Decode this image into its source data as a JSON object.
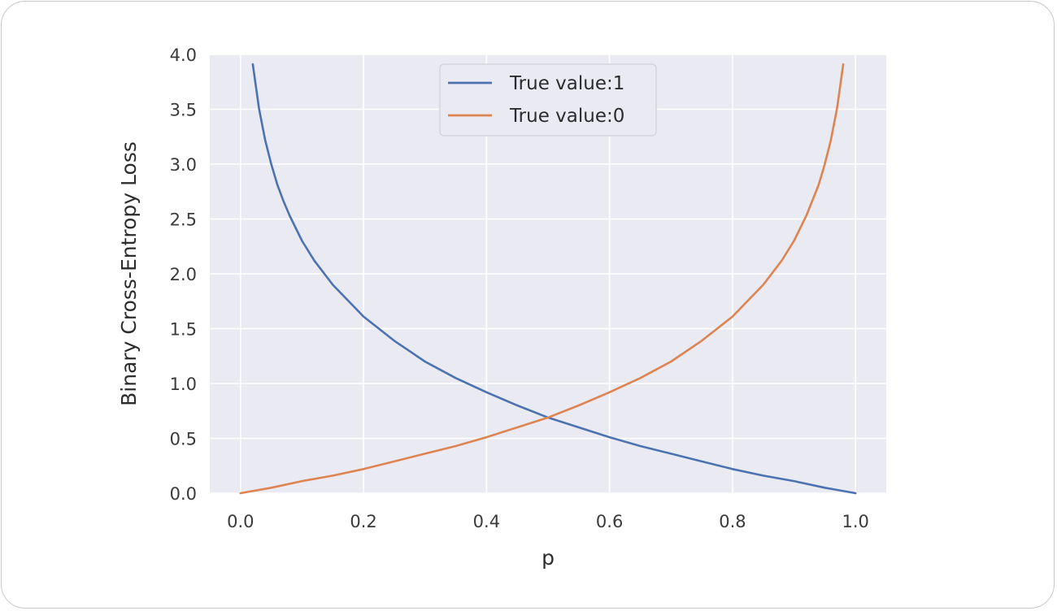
{
  "chart_data": {
    "type": "line",
    "title": "",
    "xlabel": "p",
    "ylabel": "Binary Cross-Entropy Loss",
    "xlim": [
      -0.05,
      1.05
    ],
    "ylim": [
      0.0,
      4.0
    ],
    "x_ticks": [
      "0.0",
      "0.2",
      "0.4",
      "0.6",
      "0.8",
      "1.0"
    ],
    "y_ticks": [
      "0.0",
      "0.5",
      "1.0",
      "1.5",
      "2.0",
      "2.5",
      "3.0",
      "3.5",
      "4.0"
    ],
    "grid": true,
    "legend_position": "top-center",
    "background_color": "#eaeaf2",
    "grid_color": "#ffffff",
    "series": [
      {
        "name": "True value:1",
        "color": "#4c72b0",
        "x": [
          0.02,
          0.03,
          0.04,
          0.05,
          0.06,
          0.07,
          0.08,
          0.1,
          0.12,
          0.15,
          0.2,
          0.25,
          0.3,
          0.35,
          0.4,
          0.45,
          0.5,
          0.55,
          0.6,
          0.65,
          0.7,
          0.75,
          0.8,
          0.85,
          0.9,
          0.95,
          1.0
        ],
        "y": [
          3.91,
          3.51,
          3.22,
          3.0,
          2.81,
          2.66,
          2.53,
          2.3,
          2.12,
          1.9,
          1.61,
          1.39,
          1.2,
          1.05,
          0.92,
          0.8,
          0.69,
          0.6,
          0.51,
          0.43,
          0.36,
          0.29,
          0.22,
          0.16,
          0.11,
          0.05,
          0.0
        ]
      },
      {
        "name": "True value:0",
        "color": "#dd8452",
        "x": [
          0.0,
          0.05,
          0.1,
          0.15,
          0.2,
          0.25,
          0.3,
          0.35,
          0.4,
          0.45,
          0.5,
          0.55,
          0.6,
          0.65,
          0.7,
          0.75,
          0.8,
          0.85,
          0.88,
          0.9,
          0.92,
          0.94,
          0.95,
          0.96,
          0.97,
          0.98
        ],
        "y": [
          0.0,
          0.05,
          0.11,
          0.16,
          0.22,
          0.29,
          0.36,
          0.43,
          0.51,
          0.6,
          0.69,
          0.8,
          0.92,
          1.05,
          1.2,
          1.39,
          1.61,
          1.9,
          2.12,
          2.3,
          2.53,
          2.81,
          3.0,
          3.22,
          3.51,
          3.91
        ]
      }
    ]
  }
}
